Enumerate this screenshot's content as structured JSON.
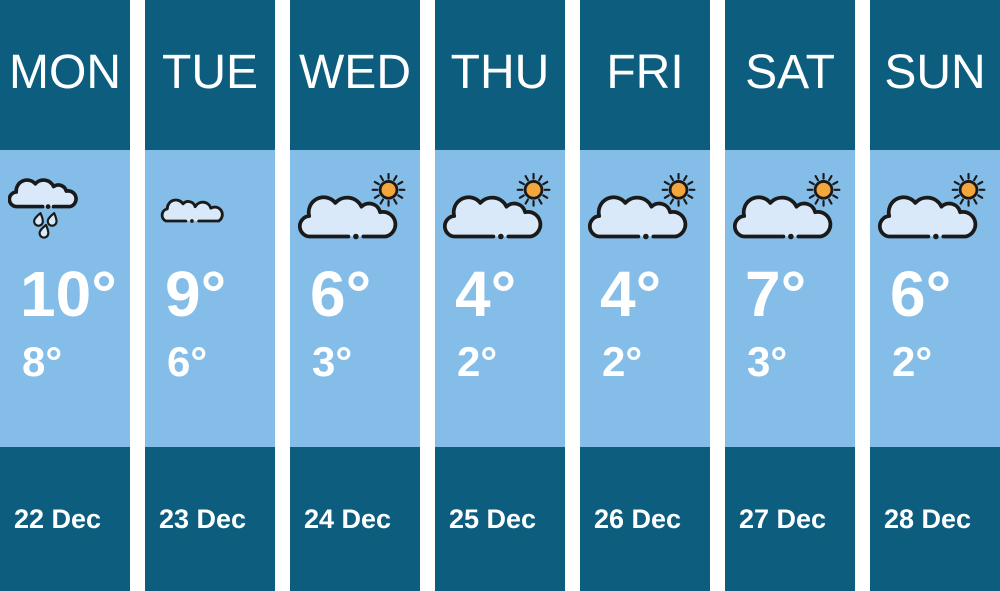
{
  "theme": {
    "teal": "#0d5e7e",
    "sky": "#85bde9",
    "text": "#ffffff",
    "ink": "#1a1a1a",
    "cloud": "#d9e9fa",
    "sun": "#f2a63c"
  },
  "days": [
    {
      "label": "MON",
      "icon": "rain-cloud",
      "high": "10°",
      "low": "8°",
      "date": "22 Dec"
    },
    {
      "label": "TUE",
      "icon": "cloud",
      "high": "9°",
      "low": "6°",
      "date": "23 Dec"
    },
    {
      "label": "WED",
      "icon": "sun-cloud",
      "high": "6°",
      "low": "3°",
      "date": "24 Dec"
    },
    {
      "label": "THU",
      "icon": "sun-cloud",
      "high": "4°",
      "low": "2°",
      "date": "25 Dec"
    },
    {
      "label": "FRI",
      "icon": "sun-cloud",
      "high": "4°",
      "low": "2°",
      "date": "26 Dec"
    },
    {
      "label": "SAT",
      "icon": "sun-cloud",
      "high": "7°",
      "low": "3°",
      "date": "27 Dec"
    },
    {
      "label": "SUN",
      "icon": "sun-cloud",
      "high": "6°",
      "low": "2°",
      "date": "28 Dec"
    }
  ]
}
